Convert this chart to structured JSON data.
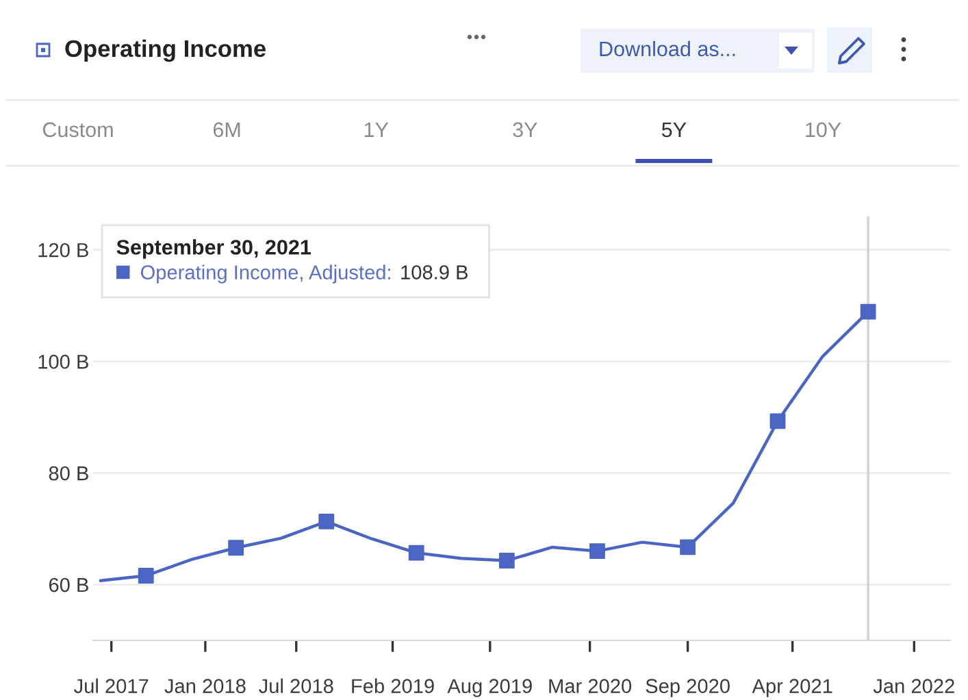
{
  "chart_data": {
    "type": "line",
    "title": "Operating Income",
    "legend_title": "September 30, 2021",
    "annotations": [
      "108.9 B",
      "Download as...",
      "Custom",
      "6M",
      "1Y",
      "3Y",
      "5Y",
      "10Y"
    ],
    "x": [
      "2017-06-30",
      "2017-09-30",
      "2017-12-31",
      "2018-03-31",
      "2018-06-30",
      "2018-09-30",
      "2018-12-31",
      "2019-03-31",
      "2019-06-30",
      "2019-09-30",
      "2019-12-31",
      "2020-03-31",
      "2020-06-30",
      "2020-09-30",
      "2020-12-31",
      "2021-03-31",
      "2021-06-30",
      "2021-09-30"
    ],
    "series": [
      {
        "color": "#4b65c2",
        "marker": "none",
        "values": [
          60.7,
          61.6,
          64.5,
          66.6,
          68.3,
          71.3,
          68.2,
          65.7,
          64.7,
          64.3,
          66.7,
          66.0,
          67.6,
          66.7,
          74.6,
          89.3,
          100.9,
          108.9
        ]
      },
      {
        "type": "scatter",
        "name": "Operating Income, Adjusted:",
        "color": "#4b65c2",
        "marker": "square",
        "x": [
          "2017-09-30",
          "2018-03-31",
          "2018-09-30",
          "2019-03-31",
          "2019-09-30",
          "2020-03-31",
          "2020-09-30",
          "2021-03-31",
          "2021-09-30"
        ],
        "values": [
          61.6,
          66.6,
          71.3,
          65.7,
          64.3,
          66.0,
          66.7,
          89.3,
          108.9
        ]
      }
    ],
    "line_style": "solid",
    "xlim": [
      "2017-06-15",
      "2022-03-15"
    ],
    "xticks": [
      {
        "value": "2017-07-22",
        "label": "Jul 2017"
      },
      {
        "value": "2018-01-28",
        "label": "Jan 2018"
      },
      {
        "value": "2018-07-31",
        "label": "Jul 2018"
      },
      {
        "value": "2019-02-11",
        "label": "Feb 2019"
      },
      {
        "value": "2019-08-27",
        "label": "Aug 2019"
      },
      {
        "value": "2020-03-16",
        "label": "Mar 2020"
      },
      {
        "value": "2020-09-30",
        "label": "Sep 2020"
      },
      {
        "value": "2021-04-30",
        "label": "Apr 2021"
      },
      {
        "value": "2022-01-01",
        "label": "Jan 2022"
      }
    ],
    "ylim": [
      50,
      126
    ],
    "yticks": [
      {
        "value": 60,
        "label": "60 B"
      },
      {
        "value": 80,
        "label": "80 B"
      },
      {
        "value": 100,
        "label": "100 B"
      },
      {
        "value": 120,
        "label": "120 B"
      }
    ],
    "ref_lines": [
      {
        "axis": "x",
        "value": "2021-09-30",
        "color": "#d4d4d4"
      }
    ],
    "grid": "y",
    "legend": "top left"
  }
}
